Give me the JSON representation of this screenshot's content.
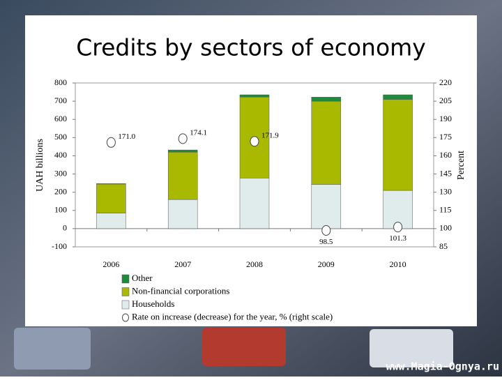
{
  "title": "Credits by sectors of economy",
  "watermark": "www.Magia-Ognya.ru",
  "chart_data": {
    "type": "bar",
    "stacked": true,
    "y_label": "UAH billions",
    "y2_label": "Percent",
    "categories": [
      "2006",
      "2007",
      "2008",
      "2009",
      "2010"
    ],
    "ylim": [
      -100,
      800
    ],
    "yticks": [
      -100,
      0,
      100,
      200,
      300,
      400,
      500,
      600,
      700,
      800
    ],
    "y2lim": [
      85,
      220
    ],
    "y2ticks": [
      85,
      100,
      115,
      130,
      145,
      160,
      175,
      190,
      205,
      220
    ],
    "series": [
      {
        "name": "Other",
        "color": "#1e8b3c",
        "values": [
          2,
          12,
          12,
          22,
          25
        ]
      },
      {
        "name": "Non-financial corporations",
        "color": "#a9b900",
        "values": [
          160,
          260,
          445,
          457,
          500
        ]
      },
      {
        "name": "Households",
        "color": "#dfeceb",
        "values": [
          85,
          160,
          278,
          243,
          210
        ]
      },
      {
        "name": "Rate on increase (decrease) for the year, % (right scale)",
        "type": "scatter",
        "axis": "y2",
        "color": "#ffffff",
        "values": [
          171.0,
          174.1,
          171.9,
          98.5,
          101.3
        ],
        "value_labels": [
          "171.0",
          "174.1",
          "171.9",
          "98.5",
          "101.3"
        ]
      }
    ]
  }
}
